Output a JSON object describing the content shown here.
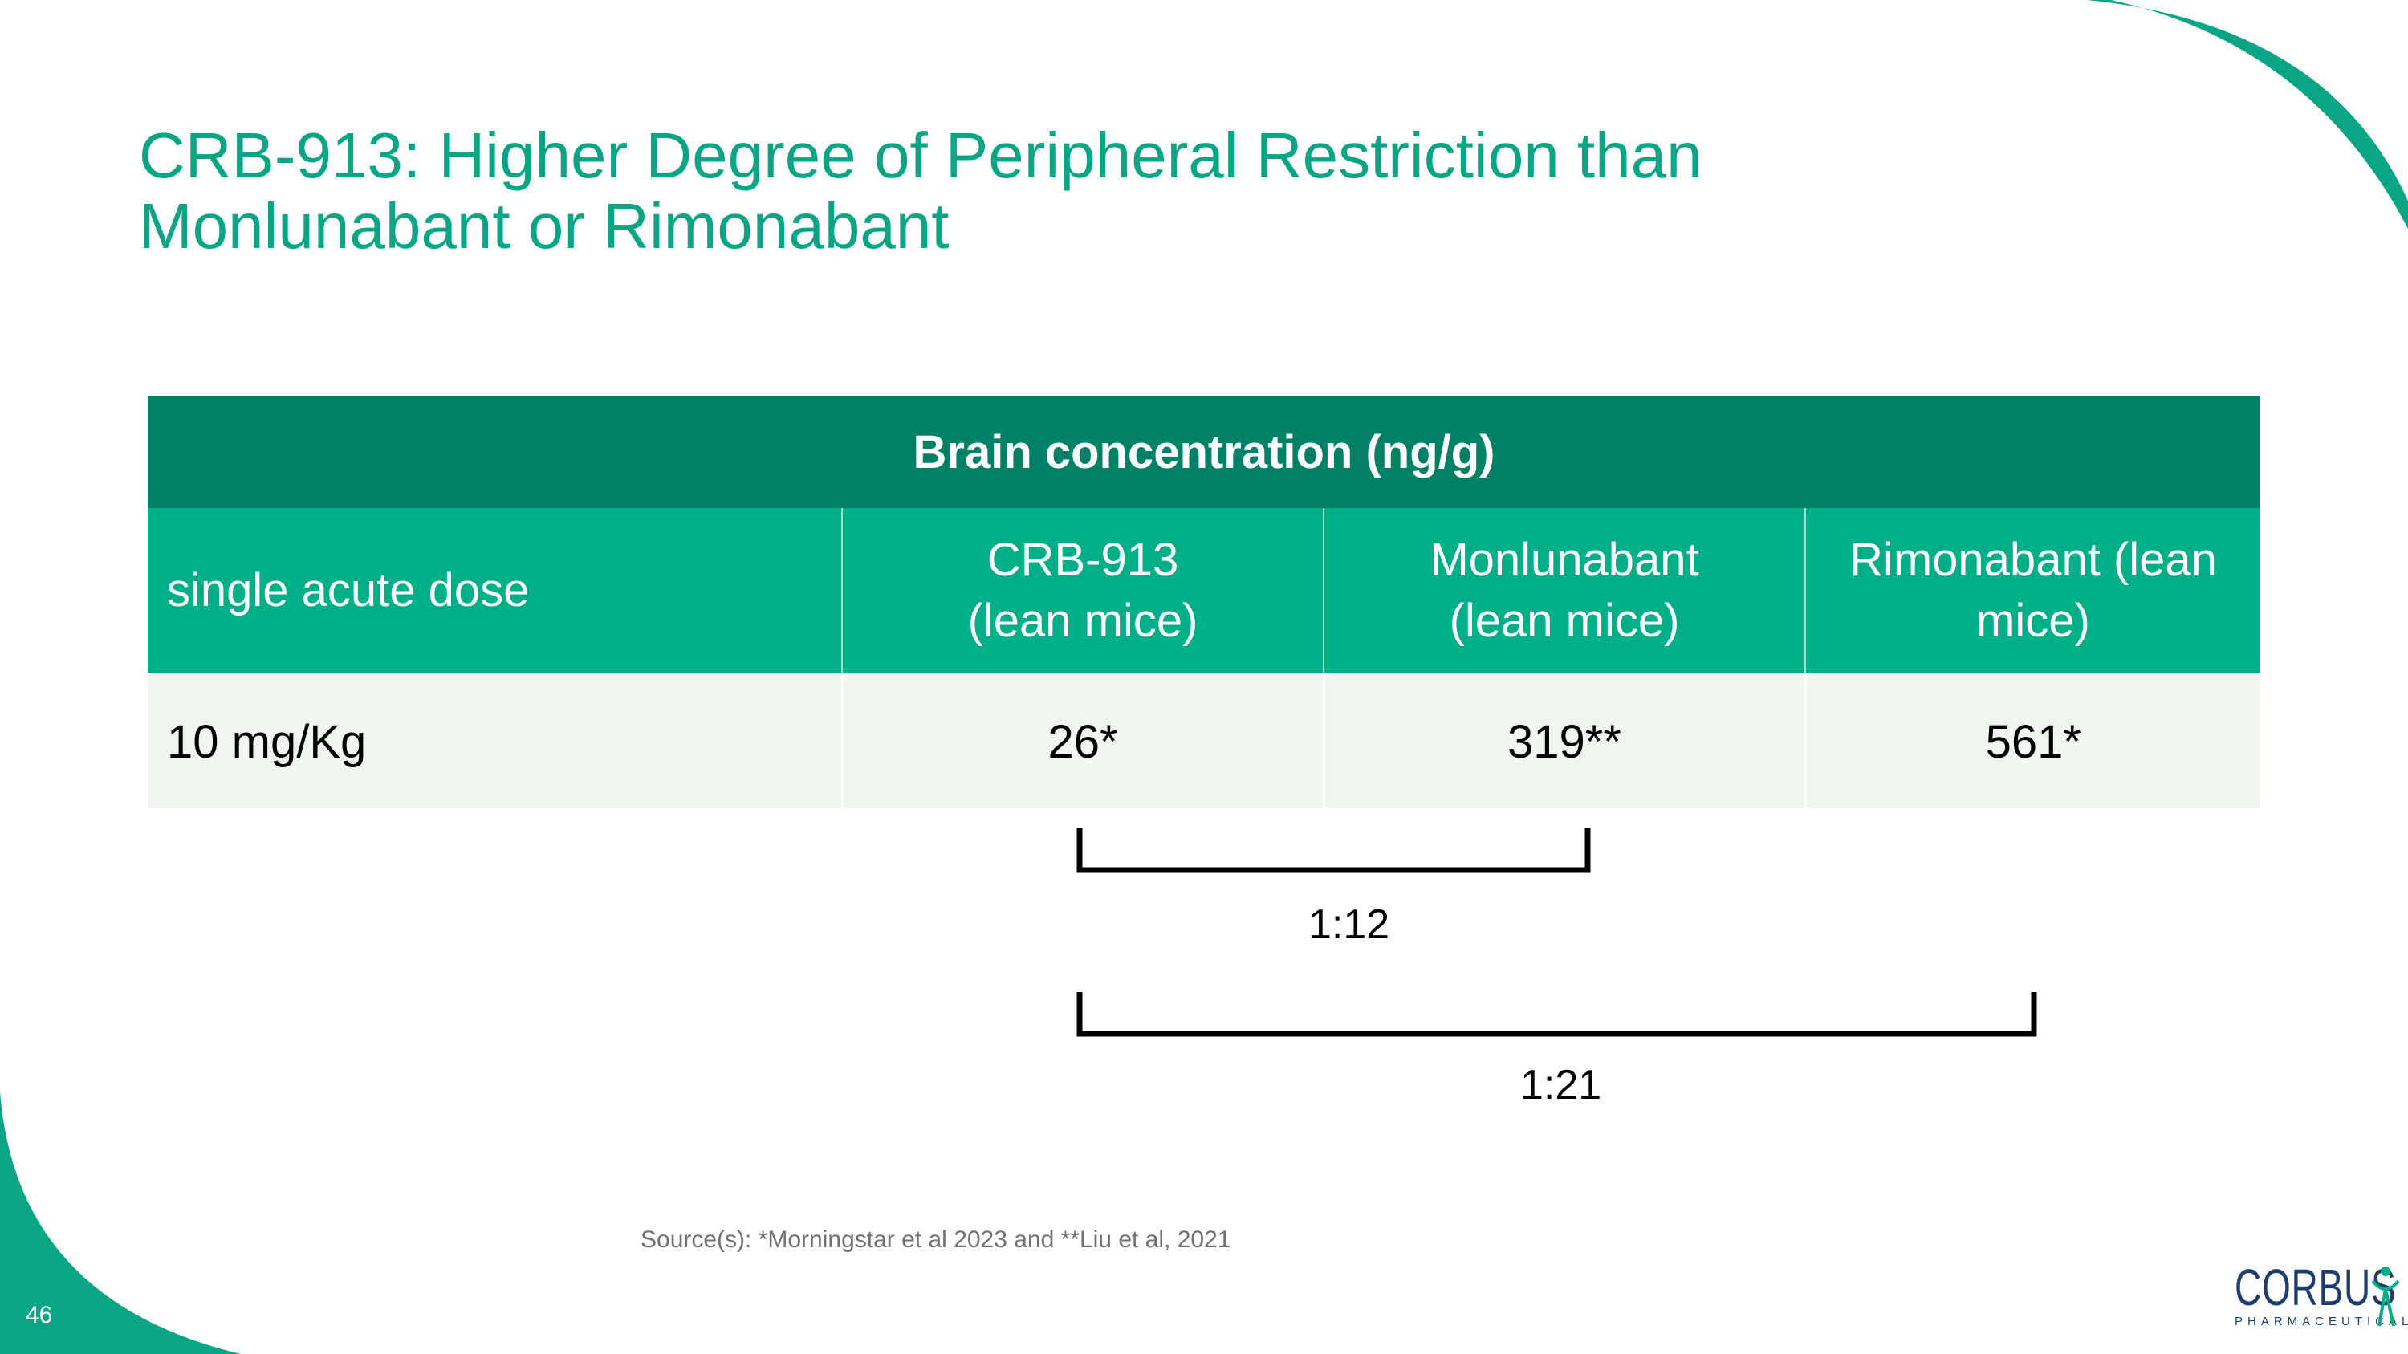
{
  "colors": {
    "accent": "#0aa585",
    "header_dark": "#008065",
    "header_light": "#00ae87",
    "row_bg": "#f0f5f0",
    "logo": "#1c3d6e"
  },
  "title": {
    "line1": "CRB-913: Higher Degree of Peripheral Restriction than",
    "line2": "Monlunabant or Rimonabant"
  },
  "table": {
    "header": "Brain concentration (ng/g)",
    "subheader": {
      "row_label": "single acute dose",
      "columns": [
        {
          "line1": "CRB-913",
          "line2": "(lean mice)"
        },
        {
          "line1": "Monlunabant",
          "line2": "(lean mice)"
        },
        {
          "line1": "Rimonabant (lean",
          "line2": "mice)"
        }
      ]
    },
    "rows": [
      {
        "label": "10 mg/Kg",
        "values": [
          "26*",
          "319**",
          "561*"
        ]
      }
    ]
  },
  "ratios": {
    "crb_vs_monlunabant": "1:12",
    "crb_vs_rimonabant": "1:21"
  },
  "source": "Source(s): *Morningstar et al 2023 and **Liu et al, 2021",
  "page_number": "46",
  "logo": {
    "word": "CORBUS",
    "subtitle": "PHARMACEUTICALS"
  }
}
